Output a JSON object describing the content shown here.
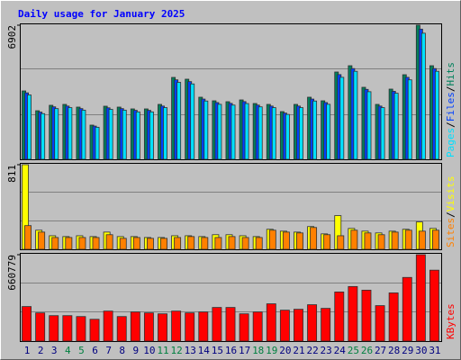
{
  "title": "Daily usage for January 2025",
  "legend_separator": "/",
  "weekend": [
    false,
    false,
    false,
    true,
    true,
    false,
    false,
    false,
    false,
    false,
    true,
    true,
    false,
    false,
    false,
    false,
    false,
    true,
    true,
    false,
    false,
    false,
    false,
    false,
    true,
    true,
    false,
    false,
    false,
    false,
    false
  ],
  "weekday_color": "#000080",
  "weekend_color": "#008040",
  "chart_data": [
    {
      "type": "bar",
      "ylim": [
        0,
        6902
      ],
      "yticks": [
        6902
      ],
      "grid": true,
      "series": [
        {
          "name": "Hits",
          "color": "#00805C",
          "values": [
            3520,
            2500,
            2780,
            2826,
            2687,
            1760,
            2733,
            2687,
            2594,
            2594,
            2826,
            4215,
            4123,
            3196,
            3011,
            2965,
            3057,
            2872,
            2826,
            2455,
            2826,
            3196,
            3011,
            4493,
            4817,
            3706,
            2826,
            3613,
            4354,
            6902,
            4817
          ]
        },
        {
          "name": "Files",
          "color": "#0040FF",
          "values": [
            3420,
            2430,
            2700,
            2740,
            2610,
            1710,
            2650,
            2610,
            2520,
            2520,
            2740,
            4090,
            4000,
            3100,
            2920,
            2880,
            2970,
            2790,
            2740,
            2380,
            2740,
            3100,
            2920,
            4360,
            4670,
            3600,
            2740,
            3500,
            4220,
            6700,
            4670
          ]
        },
        {
          "name": "Pages",
          "color": "#00E0FF",
          "values": [
            3310,
            2350,
            2610,
            2660,
            2530,
            1650,
            2570,
            2530,
            2440,
            2440,
            2660,
            3960,
            3880,
            3000,
            2830,
            2790,
            2870,
            2700,
            2660,
            2310,
            2660,
            3000,
            2830,
            4220,
            4530,
            3480,
            2660,
            3400,
            4090,
            6490,
            4530
          ]
        }
      ]
    },
    {
      "type": "bar",
      "ylim": [
        0,
        811
      ],
      "yticks": [
        811
      ],
      "grid": true,
      "series": [
        {
          "name": "Visits",
          "color": "#FFFF00",
          "values": [
            811,
            183,
            130,
            122,
            130,
            122,
            165,
            122,
            122,
            113,
            113,
            130,
            130,
            122,
            140,
            140,
            130,
            122,
            192,
            174,
            165,
            218,
            148,
            323,
            200,
            174,
            157,
            174,
            192,
            262,
            200
          ]
        },
        {
          "name": "Sites",
          "color": "#FF8000",
          "values": [
            227,
            165,
            113,
            113,
            113,
            113,
            140,
            105,
            113,
            105,
            105,
            113,
            122,
            113,
            113,
            122,
            113,
            113,
            183,
            165,
            157,
            209,
            140,
            130,
            183,
            157,
            140,
            165,
            183,
            174,
            183
          ]
        }
      ]
    },
    {
      "type": "bar",
      "ylim": [
        0,
        660779
      ],
      "yticks": [
        660779
      ],
      "grid": true,
      "categories": [
        "1",
        "2",
        "3",
        "4",
        "5",
        "6",
        "7",
        "8",
        "9",
        "10",
        "11",
        "12",
        "13",
        "14",
        "15",
        "16",
        "17",
        "18",
        "19",
        "20",
        "21",
        "22",
        "23",
        "24",
        "25",
        "26",
        "27",
        "28",
        "29",
        "30",
        "31"
      ],
      "series": [
        {
          "name": "KBytes",
          "color": "#FF0000",
          "values": [
            264330,
            215640,
            194770,
            194770,
            187810,
            166940,
            229550,
            187810,
            222590,
            215640,
            208680,
            229550,
            215640,
            222590,
            257370,
            257370,
            208680,
            222590,
            285200,
            236500,
            243460,
            278240,
            250420,
            375620,
            417360,
            389540,
            271280,
            368670,
            486920,
            660779,
            542570
          ]
        }
      ]
    }
  ]
}
